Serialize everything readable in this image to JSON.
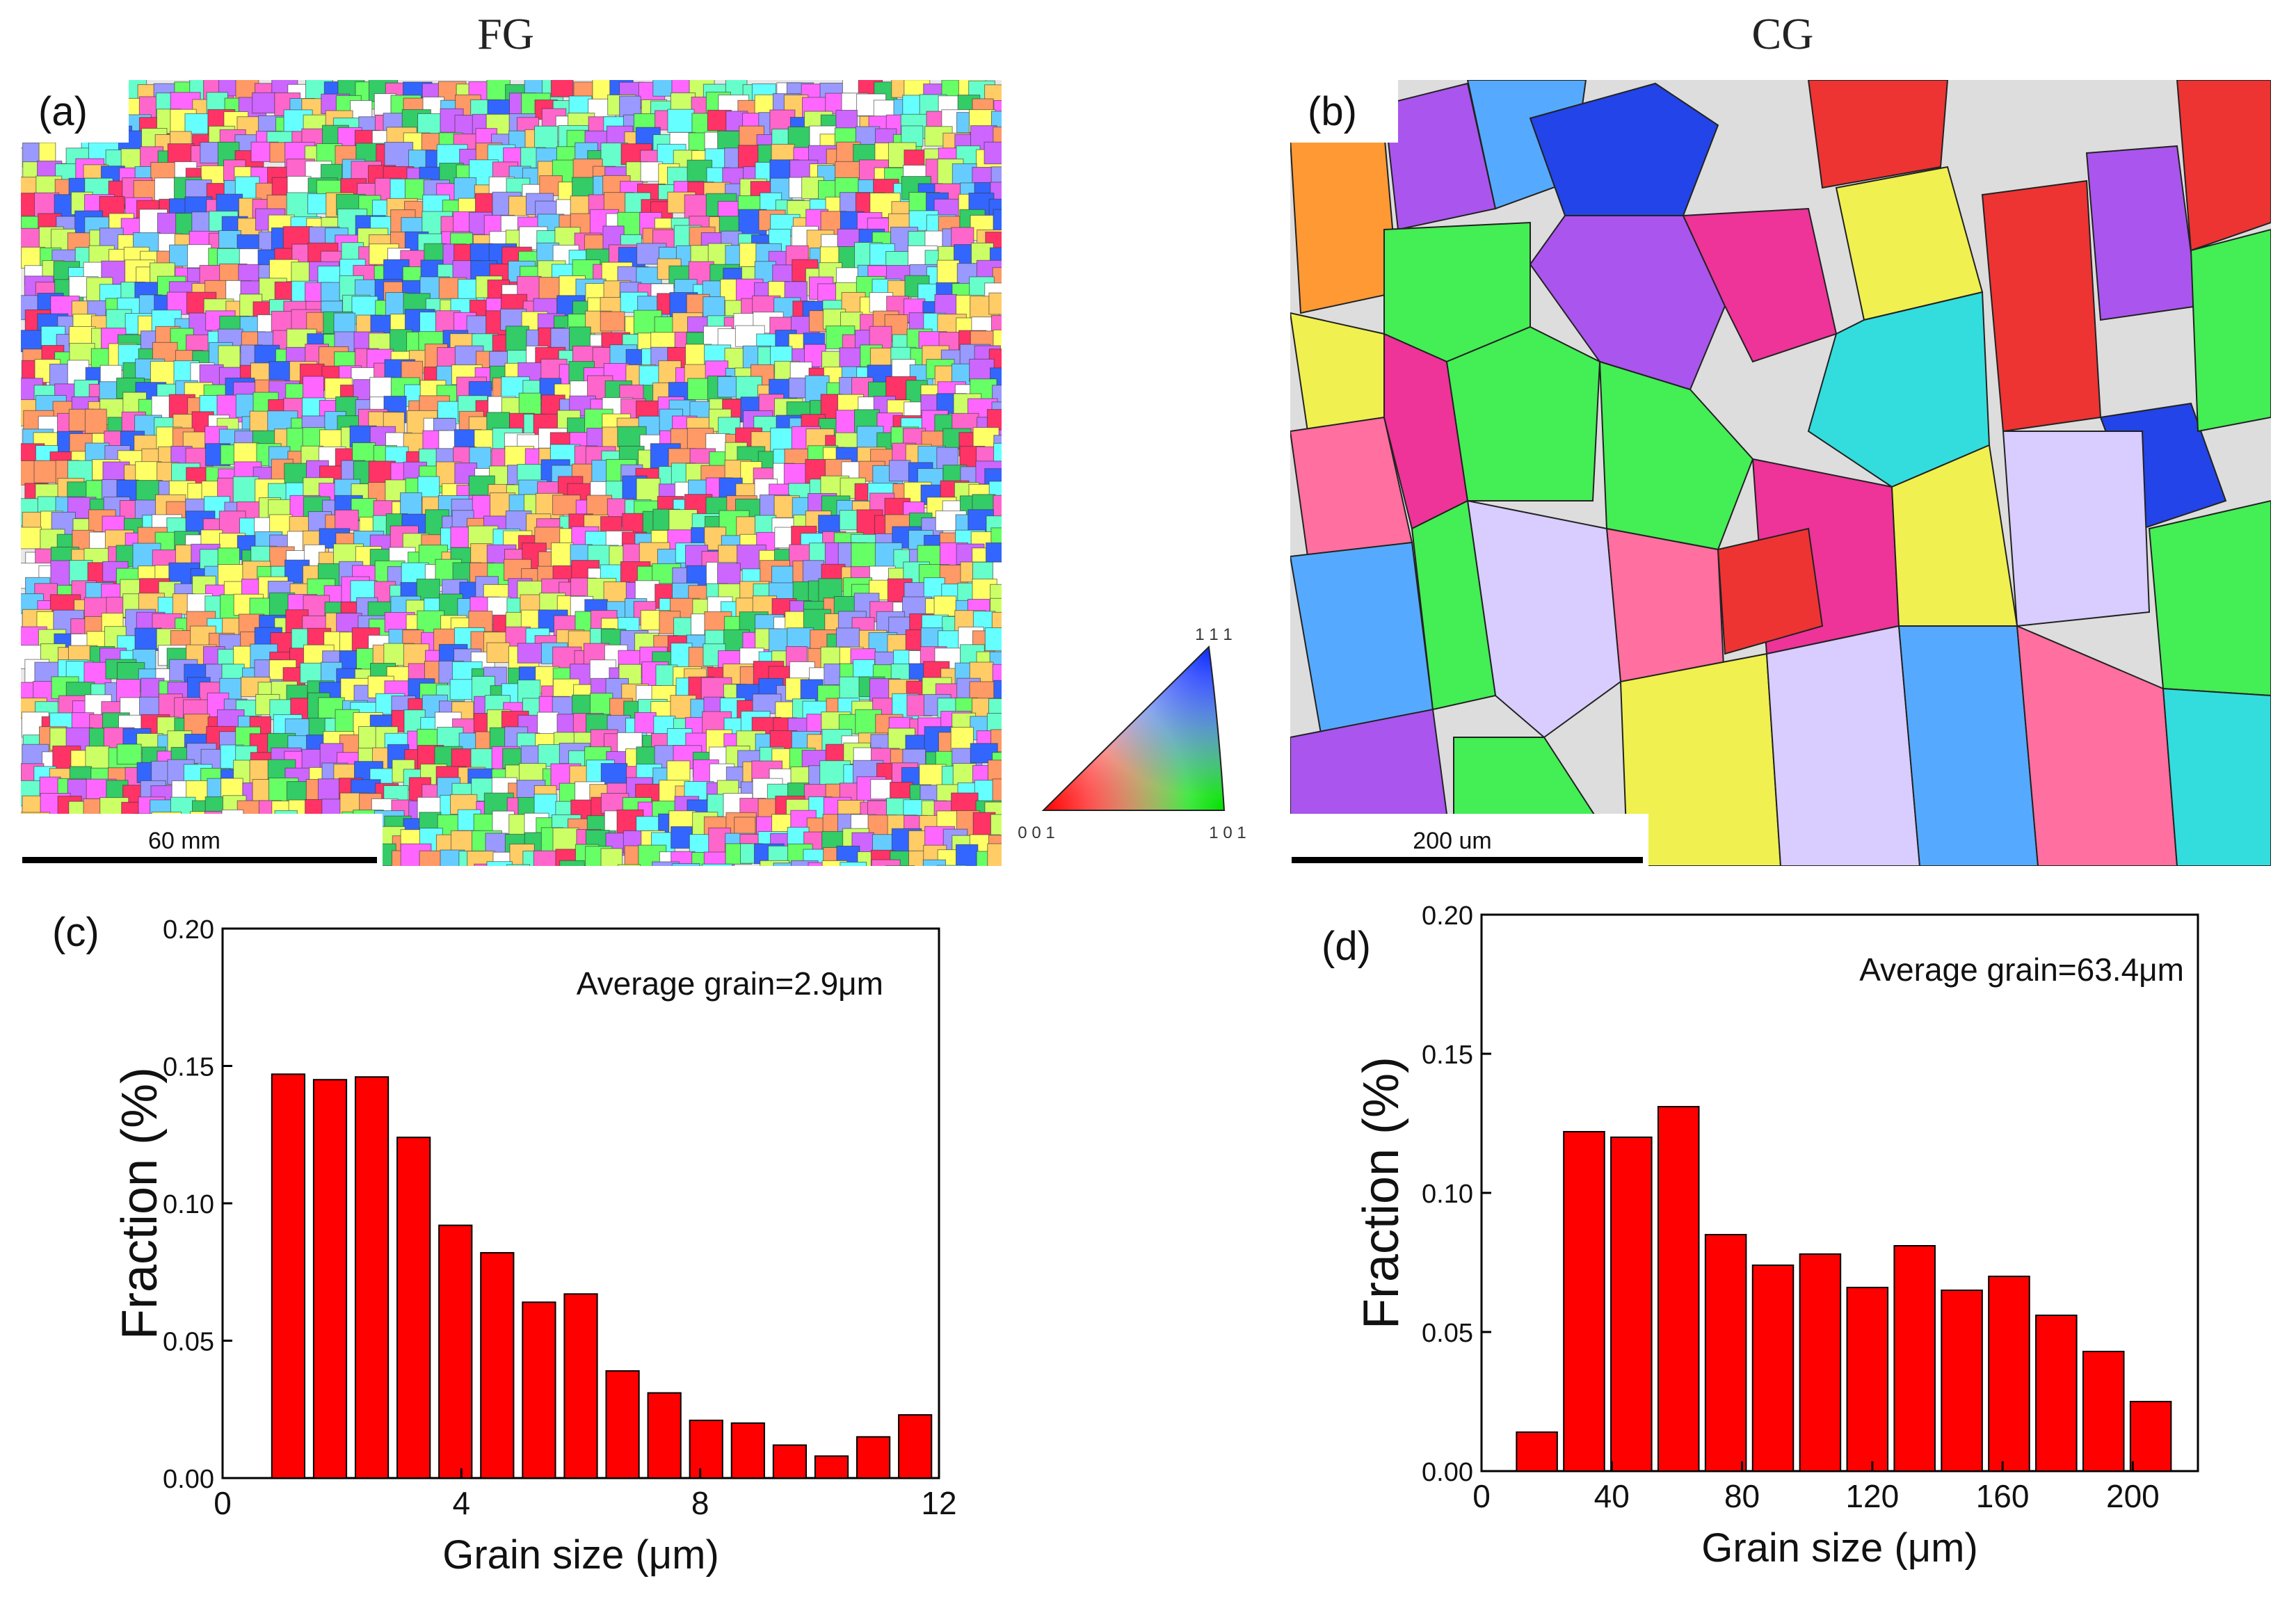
{
  "figure": {
    "fg_header": "FG",
    "cg_header": "CG",
    "panel_labels": {
      "a": "(a)",
      "b": "(b)",
      "c": "(c)",
      "d": "(d)"
    },
    "scalebar_a": "60 mm",
    "scalebar_b": "200 um",
    "ipf_key": {
      "top": "1 1 1",
      "left": "0 0 1",
      "right": "1 0 1",
      "colors": {
        "001": "#ff0000",
        "101": "#00e000",
        "111": "#1030ff"
      }
    },
    "fg_map_palette": [
      "#ff66cc",
      "#66ff66",
      "#66ccff",
      "#ffcc66",
      "#cc66ff",
      "#ffff66",
      "#66ffcc",
      "#ff9966",
      "#9999ff",
      "#ccff66",
      "#ff66ff",
      "#66ffff",
      "#ff3366",
      "#33cc66",
      "#ffffff",
      "#3366ff"
    ],
    "cg_grains": [
      {
        "name": "blue",
        "color": "#2244e8"
      },
      {
        "name": "purple",
        "color": "#aa55ee"
      },
      {
        "name": "green",
        "color": "#44ee55"
      },
      {
        "name": "red",
        "color": "#ee3333"
      },
      {
        "name": "magenta",
        "color": "#ee3399"
      },
      {
        "name": "yellow",
        "color": "#f0f050"
      },
      {
        "name": "cyan",
        "color": "#33dddd"
      },
      {
        "name": "lavender",
        "color": "#d9ccff"
      },
      {
        "name": "orange",
        "color": "#ff9933"
      },
      {
        "name": "skyblue",
        "color": "#55aaff"
      },
      {
        "name": "pink",
        "color": "#ff6fa0"
      }
    ]
  },
  "chart_data": [
    {
      "panel": "(c)",
      "type": "bar",
      "annotation": "Average grain=2.9μm",
      "xlabel": "Grain size (μm)",
      "ylabel": "Fraction (%)",
      "xlim": [
        0,
        12
      ],
      "ylim": [
        0,
        0.2
      ],
      "xticks": [
        "0",
        "4",
        "8",
        "12"
      ],
      "xtick_values": [
        0,
        4,
        8,
        12
      ],
      "yticks": [
        "0.00",
        "0.05",
        "0.10",
        "0.15",
        "0.20"
      ],
      "ytick_values": [
        0,
        0.05,
        0.1,
        0.15,
        0.2
      ],
      "bar_width": 0.55,
      "x": [
        1.1,
        1.8,
        2.5,
        3.2,
        3.9,
        4.6,
        5.3,
        6.0,
        6.7,
        7.4,
        8.1,
        8.8,
        9.5,
        10.2,
        10.9,
        11.6
      ],
      "values": [
        0.147,
        0.145,
        0.146,
        0.124,
        0.092,
        0.082,
        0.064,
        0.067,
        0.039,
        0.031,
        0.021,
        0.02,
        0.012,
        0.008,
        0.015,
        0.023
      ],
      "bar_color": "#ff0000"
    },
    {
      "panel": "(d)",
      "type": "bar",
      "annotation": "Average grain=63.4μm",
      "xlabel": "Grain size (μm)",
      "ylabel": "Fraction (%)",
      "xlim": [
        0,
        220
      ],
      "ylim": [
        0,
        0.2
      ],
      "xticks": [
        "0",
        "40",
        "80",
        "120",
        "160",
        "200"
      ],
      "xtick_values": [
        0,
        40,
        80,
        120,
        160,
        200
      ],
      "yticks": [
        "0.00",
        "0.05",
        "0.10",
        "0.15",
        "0.20"
      ],
      "ytick_values": [
        0,
        0.05,
        0.1,
        0.15,
        0.2
      ],
      "bar_width": 12.5,
      "x": [
        17,
        31.5,
        46,
        60.5,
        75,
        89.5,
        104,
        118.5,
        133,
        147.5,
        162,
        176.5,
        191,
        205.5
      ],
      "values": [
        0.014,
        0.122,
        0.12,
        0.131,
        0.085,
        0.074,
        0.078,
        0.066,
        0.081,
        0.065,
        0.07,
        0.056,
        0.043,
        0.025
      ],
      "bar_color": "#ff0000"
    }
  ]
}
